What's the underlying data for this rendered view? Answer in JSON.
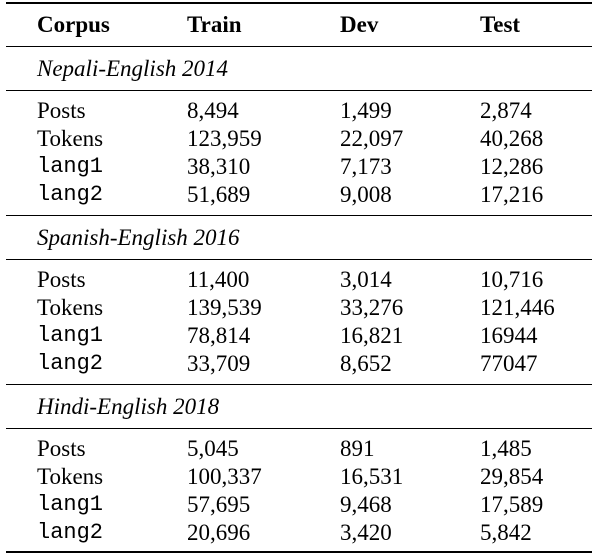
{
  "table": {
    "headers": [
      "Corpus",
      "Train",
      "Dev",
      "Test"
    ],
    "sections": [
      {
        "title": "Nepali-English 2014",
        "rows": [
          {
            "label": "Posts",
            "train": "8,494",
            "dev": "1,499",
            "test": "2,874"
          },
          {
            "label": "Tokens",
            "train": "123,959",
            "dev": "22,097",
            "test": "40,268"
          },
          {
            "label": "lang1",
            "train": "38,310",
            "dev": "7,173",
            "test": "12,286"
          },
          {
            "label": "lang2",
            "train": "51,689",
            "dev": "9,008",
            "test": "17,216"
          }
        ]
      },
      {
        "title": "Spanish-English 2016",
        "rows": [
          {
            "label": "Posts",
            "train": "11,400",
            "dev": "3,014",
            "test": "10,716"
          },
          {
            "label": "Tokens",
            "train": "139,539",
            "dev": "33,276",
            "test": "121,446"
          },
          {
            "label": "lang1",
            "train": "78,814",
            "dev": "16,821",
            "test": "16944"
          },
          {
            "label": "lang2",
            "train": "33,709",
            "dev": "8,652",
            "test": "77047"
          }
        ]
      },
      {
        "title": "Hindi-English 2018",
        "rows": [
          {
            "label": "Posts",
            "train": "5,045",
            "dev": "891",
            "test": "1,485"
          },
          {
            "label": "Tokens",
            "train": "100,337",
            "dev": "16,531",
            "test": "29,854"
          },
          {
            "label": "lang1",
            "train": "57,695",
            "dev": "9,468",
            "test": "17,589"
          },
          {
            "label": "lang2",
            "train": "20,696",
            "dev": "3,420",
            "test": "5,842"
          }
        ]
      }
    ]
  }
}
